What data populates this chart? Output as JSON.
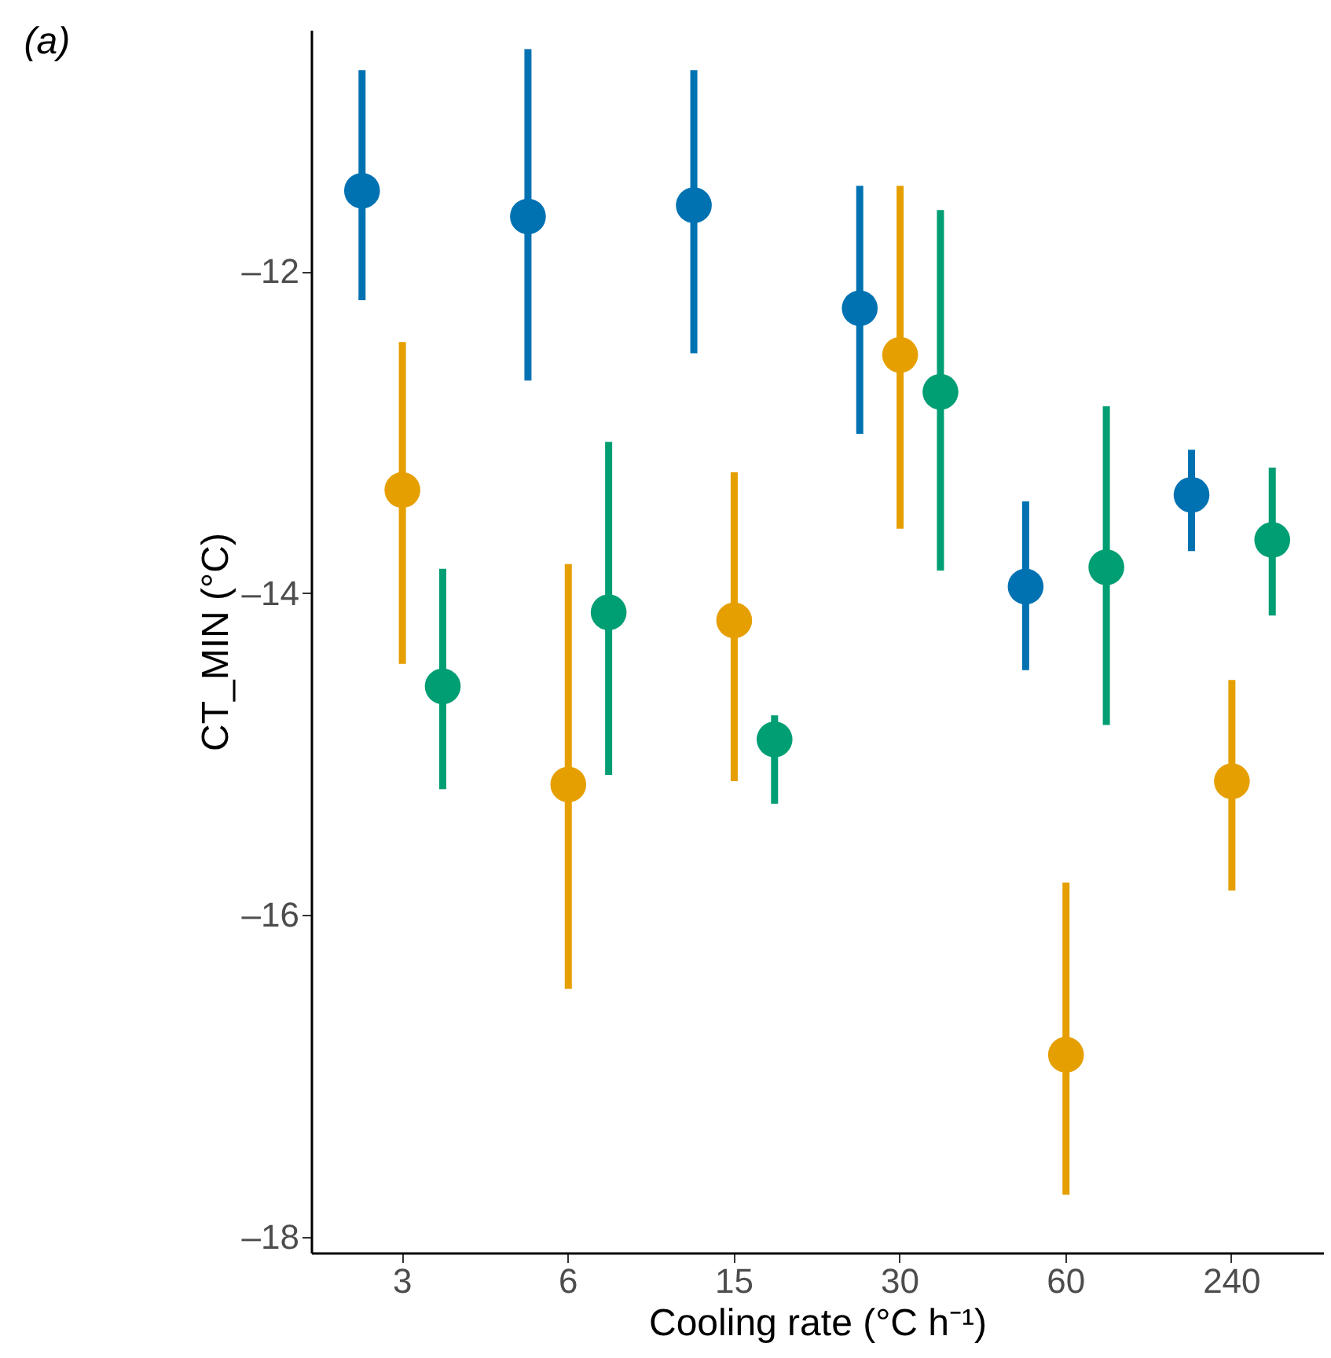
{
  "chart_data": {
    "type": "scatter",
    "title": "(a)",
    "xlabel": "Cooling rate (°C h⁻¹)",
    "ylabel": "CT_MIN (°C)",
    "categories": [
      "3",
      "6",
      "15",
      "30",
      "60",
      "240"
    ],
    "series": [
      {
        "color": "#0072b2",
        "values": [
          -11.5,
          -11.66,
          -11.59,
          -12.23,
          -13.96,
          -13.39
        ],
        "errors": [
          [
            -12.18,
            -10.75
          ],
          [
            -12.68,
            -10.62
          ],
          [
            -12.51,
            -10.75
          ],
          [
            -13.01,
            -11.47
          ],
          [
            -14.48,
            -13.43
          ],
          [
            -13.74,
            -13.11
          ]
        ]
      },
      {
        "color": "#e69f00",
        "values": [
          -13.36,
          -15.19,
          -14.17,
          -12.52,
          -16.87,
          -15.17
        ],
        "errors": [
          [
            -14.44,
            -12.44
          ],
          [
            -16.46,
            -13.82
          ],
          [
            -15.17,
            -13.25
          ],
          [
            -13.6,
            -11.47
          ],
          [
            -17.74,
            -15.8
          ],
          [
            -15.85,
            -14.54
          ]
        ]
      },
      {
        "color": "#009e73",
        "values": [
          -14.58,
          -14.12,
          -14.91,
          -12.75,
          -13.84,
          -13.67
        ],
        "errors": [
          [
            -15.22,
            -13.85
          ],
          [
            -15.13,
            -13.06
          ],
          [
            -15.31,
            -14.76
          ],
          [
            -13.86,
            -11.62
          ],
          [
            -14.82,
            -12.84
          ],
          [
            -14.14,
            -13.22
          ]
        ]
      }
    ],
    "ylim": [
      -18.1,
      -10.5
    ],
    "yticks": [
      {
        "value": -12,
        "label": "–12"
      },
      {
        "value": -14,
        "label": "–14"
      },
      {
        "value": -16,
        "label": "–16"
      },
      {
        "value": -18,
        "label": "–18"
      }
    ],
    "grid": false,
    "legend": false,
    "marker": "circle"
  }
}
